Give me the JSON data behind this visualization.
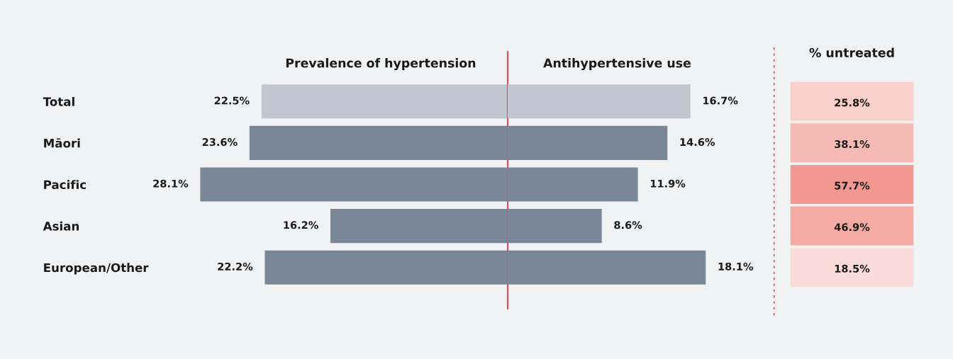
{
  "chart_data": [
    {
      "type": "bar",
      "orientation": "horizontal",
      "title": "Prevalence of hypertension",
      "categories": [
        "Total",
        "Māori",
        "Pacific",
        "Asian",
        "European/Other"
      ],
      "tick_labels": "y",
      "series": [
        {
          "values": [
            22.5,
            23.6,
            28.1,
            16.2,
            22.2
          ],
          "colors": [
            "#c1c6d0",
            "#7a8799",
            "#7a8799",
            "#7a8799",
            "#7a8799"
          ],
          "value_labels": [
            "22.5%",
            "23.6%",
            "28.1%",
            "16.2%",
            "22.2%"
          ]
        }
      ],
      "ref_lines": [
        {
          "axis": "x",
          "value": 0,
          "color": "#e0505e"
        }
      ]
    },
    {
      "type": "bar",
      "orientation": "horizontal",
      "title": "Antihypertensive use",
      "categories": [
        null,
        null,
        null,
        null,
        null
      ],
      "tick_labels": false,
      "series": [
        {
          "values": [
            16.7,
            14.6,
            11.9,
            8.6,
            18.1
          ],
          "colors": [
            "#c1c6d0",
            "#7a8799",
            "#7a8799",
            "#7a8799",
            "#7a8799"
          ],
          "value_labels": [
            "16.7%",
            "14.6%",
            "11.9%",
            "8.6%",
            "18.1%"
          ]
        }
      ]
    },
    {
      "type": "heatmap",
      "title": "% untreated",
      "categories": [
        null
      ],
      "y_categories": [
        null,
        null,
        null,
        null,
        null
      ],
      "tick_labels": false,
      "cells": [
        [
          25.8
        ],
        [
          38.1
        ],
        [
          57.7
        ],
        [
          46.9
        ],
        [
          18.5
        ]
      ],
      "cell_labels": [
        [
          "25.8%"
        ],
        [
          "38.1%"
        ],
        [
          "57.7%"
        ],
        [
          "46.9%"
        ],
        [
          "18.5%"
        ]
      ]
    }
  ]
}
